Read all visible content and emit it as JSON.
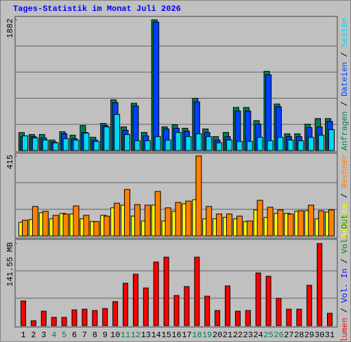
{
  "chart_data": [
    {
      "type": "bar",
      "title": "Tages-Statistik im Monat Juli 2026",
      "ylim": [
        0,
        1882
      ],
      "yticks": [
        1882
      ],
      "grid_divisions": 5,
      "legend_separator": " / ",
      "series": [
        {
          "name": "Anfragen",
          "color": "#008050",
          "values": [
            258,
            230,
            230,
            150,
            270,
            220,
            360,
            190,
            390,
            730,
            340,
            680,
            260,
            1882,
            340,
            370,
            320,
            750,
            310,
            200,
            260,
            620,
            620,
            430,
            1140,
            670,
            240,
            240,
            380,
            460,
            460
          ]
        },
        {
          "name": "Dateien",
          "color": "#0040ff",
          "values": [
            200,
            200,
            180,
            120,
            240,
            170,
            260,
            150,
            360,
            690,
            290,
            640,
            210,
            1850,
            310,
            320,
            280,
            700,
            260,
            150,
            200,
            570,
            570,
            380,
            1090,
            630,
            200,
            200,
            330,
            340,
            420
          ]
        },
        {
          "name": "Seiten",
          "color": "#00d8f0",
          "values": [
            210,
            180,
            150,
            110,
            170,
            150,
            250,
            130,
            340,
            520,
            230,
            140,
            140,
            200,
            150,
            260,
            200,
            240,
            200,
            110,
            150,
            130,
            130,
            190,
            140,
            190,
            150,
            140,
            190,
            220,
            300
          ]
        }
      ]
    },
    {
      "type": "bar",
      "ylim": [
        0,
        415
      ],
      "yticks": [
        415
      ],
      "grid_divisions": 3,
      "legend_separator": " / ",
      "series": [
        {
          "name": "Besuche",
          "color": "#ffff00",
          "values": [
            71,
            85,
            121,
            89,
            117,
            114,
            89,
            75,
            107,
            146,
            160,
            103,
            78,
            160,
            78,
            128,
            167,
            188,
            89,
            89,
            96,
            89,
            75,
            135,
            96,
            117,
            117,
            128,
            131,
            89,
            124
          ]
        },
        {
          "name": "Rechner",
          "color": "#ff8000",
          "values": [
            82,
            153,
            128,
            107,
            114,
            156,
            107,
            75,
            103,
            170,
            241,
            163,
            160,
            231,
            146,
            174,
            181,
            415,
            153,
            114,
            114,
            103,
            78,
            185,
            149,
            135,
            114,
            131,
            160,
            131,
            135
          ]
        }
      ]
    },
    {
      "type": "bar",
      "ylim": [
        0,
        141.55
      ],
      "yticks": [
        {
          "value": 141.55,
          "label": "141.55 MB"
        }
      ],
      "grid_divisions": 3,
      "legend_separator": " / ",
      "categories": [
        "1",
        "2",
        "3",
        "4",
        "5",
        "6",
        "7",
        "8",
        "9",
        "10",
        "11",
        "12",
        "13",
        "14",
        "15",
        "16",
        "17",
        "18",
        "19",
        "20",
        "21",
        "22",
        "23",
        "24",
        "25",
        "26",
        "27",
        "28",
        "29",
        "30",
        "31"
      ],
      "category_colors": [
        "#000000",
        "#000000",
        "#000000",
        "#008050",
        "#008050",
        "#000000",
        "#000000",
        "#000000",
        "#000000",
        "#000000",
        "#008050",
        "#008050",
        "#000000",
        "#000000",
        "#000000",
        "#000000",
        "#000000",
        "#008050",
        "#008050",
        "#000000",
        "#000000",
        "#000000",
        "#000000",
        "#000000",
        "#008050",
        "#008050",
        "#000000",
        "#000000",
        "#000000",
        "#000000",
        "#000000"
      ],
      "series": [
        {
          "name": "Volumen",
          "color": "#ff0000",
          "values": [
            42.5,
            8.3,
            24.8,
            14.2,
            14.2,
            27.1,
            28.3,
            26,
            29.5,
            41.3,
            73.1,
            88.5,
            64.9,
            109.7,
            118,
            51.9,
            67.3,
            118,
            50.7,
            26,
            68.4,
            24.8,
            26,
            90.8,
            85,
            47.2,
            28.3,
            28.3,
            69.6,
            141.55,
            21.2
          ]
        },
        {
          "name": "Vol. In",
          "color": "#0000ff"
        },
        {
          "name": "Vol. Out",
          "color": "#008000"
        }
      ]
    }
  ]
}
